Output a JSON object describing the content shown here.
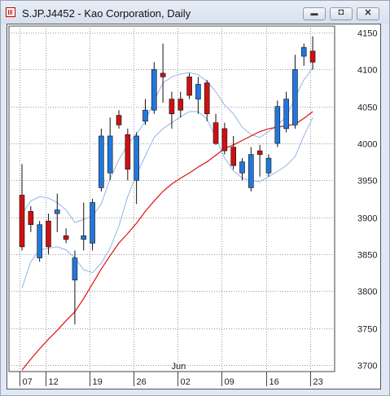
{
  "window": {
    "title": "S.JP.J4452 - Kao Corporation, Daily"
  },
  "controls": {
    "minimize_glyph": "▬",
    "restore_glyph": "◘",
    "close_glyph": "✕"
  },
  "chart_data": {
    "type": "candlestick",
    "symbol": "S.JP.J4452",
    "title": "Kao Corporation, Daily",
    "xlabel": "",
    "ylabel": "",
    "ylim": [
      3685,
      4160
    ],
    "y_ticks": [
      3700,
      3750,
      3800,
      3850,
      3900,
      3950,
      4000,
      4050,
      4100,
      4150
    ],
    "x_ticks": [
      {
        "index": 0,
        "label": "07"
      },
      {
        "index": 3,
        "label": "12"
      },
      {
        "index": 8,
        "label": "19"
      },
      {
        "index": 13,
        "label": "26"
      },
      {
        "index": 18,
        "label": "02",
        "month": "Jun"
      },
      {
        "index": 23,
        "label": "09"
      },
      {
        "index": 28,
        "label": "16"
      },
      {
        "index": 33,
        "label": "23"
      }
    ],
    "colors": {
      "up": "#2277dd",
      "down": "#cc1111",
      "ma_long": "#dd1111",
      "band": "#8fb6e6"
    },
    "candles": [
      {
        "o": 3930,
        "h": 3972,
        "l": 3855,
        "c": 3860
      },
      {
        "o": 3908,
        "h": 3915,
        "l": 3880,
        "c": 3890
      },
      {
        "o": 3845,
        "h": 3895,
        "l": 3840,
        "c": 3890
      },
      {
        "o": 3895,
        "h": 3905,
        "l": 3850,
        "c": 3860
      },
      {
        "o": 3905,
        "h": 3932,
        "l": 3880,
        "c": 3910
      },
      {
        "o": 3875,
        "h": 3885,
        "l": 3865,
        "c": 3870
      },
      {
        "o": 3815,
        "h": 3855,
        "l": 3755,
        "c": 3845
      },
      {
        "o": 3870,
        "h": 3920,
        "l": 3855,
        "c": 3875
      },
      {
        "o": 3865,
        "h": 3925,
        "l": 3855,
        "c": 3920
      },
      {
        "o": 3940,
        "h": 4020,
        "l": 3935,
        "c": 4010
      },
      {
        "o": 3960,
        "h": 4035,
        "l": 3950,
        "c": 4010
      },
      {
        "o": 4038,
        "h": 4045,
        "l": 4020,
        "c": 4025
      },
      {
        "o": 4012,
        "h": 4020,
        "l": 3950,
        "c": 3965
      },
      {
        "o": 3950,
        "h": 4015,
        "l": 3918,
        "c": 4010
      },
      {
        "o": 4030,
        "h": 4060,
        "l": 4025,
        "c": 4045
      },
      {
        "o": 4045,
        "h": 4110,
        "l": 4040,
        "c": 4100
      },
      {
        "o": 4095,
        "h": 4135,
        "l": 4055,
        "c": 4090
      },
      {
        "o": 4060,
        "h": 4070,
        "l": 4020,
        "c": 4040
      },
      {
        "o": 4060,
        "h": 4070,
        "l": 4035,
        "c": 4045
      },
      {
        "o": 4090,
        "h": 4095,
        "l": 4060,
        "c": 4065
      },
      {
        "o": 4060,
        "h": 4090,
        "l": 4040,
        "c": 4080
      },
      {
        "o": 4082,
        "h": 4086,
        "l": 4030,
        "c": 4040
      },
      {
        "o": 4028,
        "h": 4040,
        "l": 3998,
        "c": 4000
      },
      {
        "o": 4020,
        "h": 4028,
        "l": 3985,
        "c": 3990
      },
      {
        "o": 3995,
        "h": 4010,
        "l": 3965,
        "c": 3970
      },
      {
        "o": 3960,
        "h": 3980,
        "l": 3950,
        "c": 3975
      },
      {
        "o": 3940,
        "h": 3995,
        "l": 3935,
        "c": 3985
      },
      {
        "o": 3990,
        "h": 3998,
        "l": 3955,
        "c": 3985
      },
      {
        "o": 3960,
        "h": 3985,
        "l": 3955,
        "c": 3980
      },
      {
        "o": 4000,
        "h": 4058,
        "l": 3995,
        "c": 4050
      },
      {
        "o": 4020,
        "h": 4070,
        "l": 4015,
        "c": 4060
      },
      {
        "o": 4025,
        "h": 4120,
        "l": 4020,
        "c": 4100
      },
      {
        "o": 4118,
        "h": 4135,
        "l": 4105,
        "c": 4130
      },
      {
        "o": 4125,
        "h": 4145,
        "l": 4100,
        "c": 4110
      }
    ],
    "ma_long": [
      3693,
      3708,
      3722,
      3735,
      3747,
      3760,
      3772,
      3790,
      3810,
      3830,
      3848,
      3865,
      3878,
      3892,
      3908,
      3922,
      3935,
      3945,
      3953,
      3960,
      3968,
      3975,
      3984,
      3993,
      3998,
      4004,
      4010,
      4016,
      4020,
      4022,
      4024,
      4026,
      4034,
      4043
    ],
    "band_upper": [
      3905,
      3922,
      3928,
      3926,
      3920,
      3910,
      3893,
      3897,
      3902,
      3918,
      3952,
      3978,
      3998,
      4013,
      4030,
      4058,
      4082,
      4090,
      4094,
      4096,
      4093,
      4084,
      4070,
      4052,
      4040,
      4022,
      4012,
      4008,
      4016,
      4025,
      4036,
      4062,
      4086,
      4102
    ],
    "band_lower": [
      3804,
      3840,
      3856,
      3858,
      3860,
      3856,
      3845,
      3829,
      3825,
      3838,
      3858,
      3888,
      3928,
      3958,
      3983,
      4008,
      4020,
      4028,
      4036,
      4043,
      4043,
      4033,
      4008,
      3980,
      3963,
      3953,
      3950,
      3948,
      3955,
      3962,
      3970,
      3982,
      4010,
      4035
    ]
  }
}
